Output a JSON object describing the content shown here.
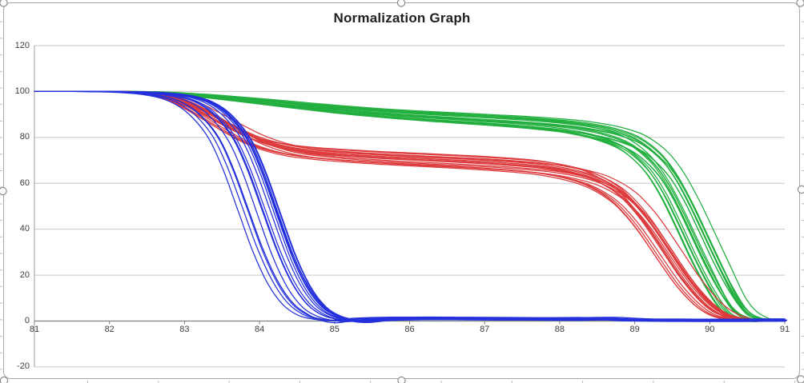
{
  "chart_data": {
    "type": "line",
    "title": "Normalization Graph",
    "xlabel": "",
    "ylabel": "",
    "xlim": [
      81,
      91
    ],
    "ylim": [
      -20,
      120
    ],
    "grid": true,
    "legend": "none",
    "x_ticks": [
      81,
      82,
      83,
      84,
      85,
      86,
      87,
      88,
      89,
      90,
      91
    ],
    "y_ticks": [
      120,
      100,
      80,
      60,
      40,
      20,
      0,
      -20
    ],
    "series_groups": [
      {
        "name": "green-cluster",
        "color": "#22AF3F",
        "line_count": 20,
        "x_jitter": 0.18,
        "shape_jitter": 0.22,
        "anchors": [
          [
            81,
            100
          ],
          [
            82,
            100
          ],
          [
            82.5,
            99.8
          ],
          [
            83,
            98.8
          ],
          [
            83.5,
            97.3
          ],
          [
            84,
            95.6
          ],
          [
            84.5,
            93.8
          ],
          [
            85,
            92.1
          ],
          [
            85.5,
            90.6
          ],
          [
            86,
            89.4
          ],
          [
            86.5,
            88.4
          ],
          [
            87,
            87.4
          ],
          [
            87.5,
            86.3
          ],
          [
            88,
            84.8
          ],
          [
            88.3,
            83.4
          ],
          [
            88.6,
            81.3
          ],
          [
            88.9,
            77.8
          ],
          [
            89.1,
            73.5
          ],
          [
            89.3,
            67
          ],
          [
            89.5,
            57
          ],
          [
            89.7,
            44
          ],
          [
            89.9,
            30
          ],
          [
            90.1,
            17
          ],
          [
            90.3,
            6
          ],
          [
            90.45,
            2
          ],
          [
            90.6,
            0.6
          ],
          [
            90.7,
            0.3
          ]
        ]
      },
      {
        "name": "red-cluster",
        "color": "#DC3A3C",
        "line_count": 18,
        "x_jitter": 0.16,
        "shape_jitter": 0.12,
        "anchors": [
          [
            81,
            100
          ],
          [
            82,
            100
          ],
          [
            82.4,
            99.7
          ],
          [
            82.7,
            98.6
          ],
          [
            83,
            95.5
          ],
          [
            83.3,
            90.5
          ],
          [
            83.6,
            85
          ],
          [
            83.9,
            80
          ],
          [
            84.2,
            76.5
          ],
          [
            84.5,
            74.3
          ],
          [
            84.9,
            72.8
          ],
          [
            85.3,
            71.8
          ],
          [
            85.8,
            70.8
          ],
          [
            86.3,
            70
          ],
          [
            86.8,
            69.2
          ],
          [
            87.3,
            68.2
          ],
          [
            87.8,
            66.8
          ],
          [
            88.2,
            64.5
          ],
          [
            88.5,
            61.5
          ],
          [
            88.8,
            56
          ],
          [
            89,
            50
          ],
          [
            89.2,
            42
          ],
          [
            89.45,
            30
          ],
          [
            89.7,
            18
          ],
          [
            89.95,
            8.5
          ],
          [
            90.15,
            3.5
          ],
          [
            90.35,
            1.2
          ],
          [
            90.5,
            0.5
          ]
        ]
      },
      {
        "name": "blue-cluster",
        "color": "#2430DC",
        "line_count": 16,
        "x_jitter": 0.3,
        "shape_jitter": 0.08,
        "anchors": [
          [
            81,
            100
          ],
          [
            81.8,
            100
          ],
          [
            82.4,
            99.6
          ],
          [
            82.8,
            98.3
          ],
          [
            83.1,
            95.5
          ],
          [
            83.35,
            90
          ],
          [
            83.6,
            80
          ],
          [
            83.8,
            66
          ],
          [
            84,
            48
          ],
          [
            84.2,
            30
          ],
          [
            84.4,
            16
          ],
          [
            84.6,
            7
          ],
          [
            84.8,
            2.5
          ],
          [
            85,
            0.4
          ],
          [
            85.2,
            -0.2
          ],
          [
            85.5,
            0.7
          ],
          [
            86,
            1.1
          ],
          [
            86.6,
            1
          ],
          [
            87.3,
            0.9
          ],
          [
            88,
            0.8
          ],
          [
            88.5,
            1
          ],
          [
            89,
            0.4
          ],
          [
            89.6,
            0.3
          ],
          [
            90.2,
            0.3
          ],
          [
            90.7,
            0.4
          ],
          [
            91,
            0.4
          ]
        ]
      }
    ]
  },
  "style_colors": {
    "gridline": "#c6c6c6",
    "axis_line": "#7f7f7f",
    "vertical_axis_line": "#9b9b9b",
    "frame_border": "#a7a7a7",
    "handle_border": "#8a8a8a",
    "worksheet_mark": "#bdbdbd",
    "tick_label": "#3d3d3d",
    "title": "#1f1f1f"
  }
}
